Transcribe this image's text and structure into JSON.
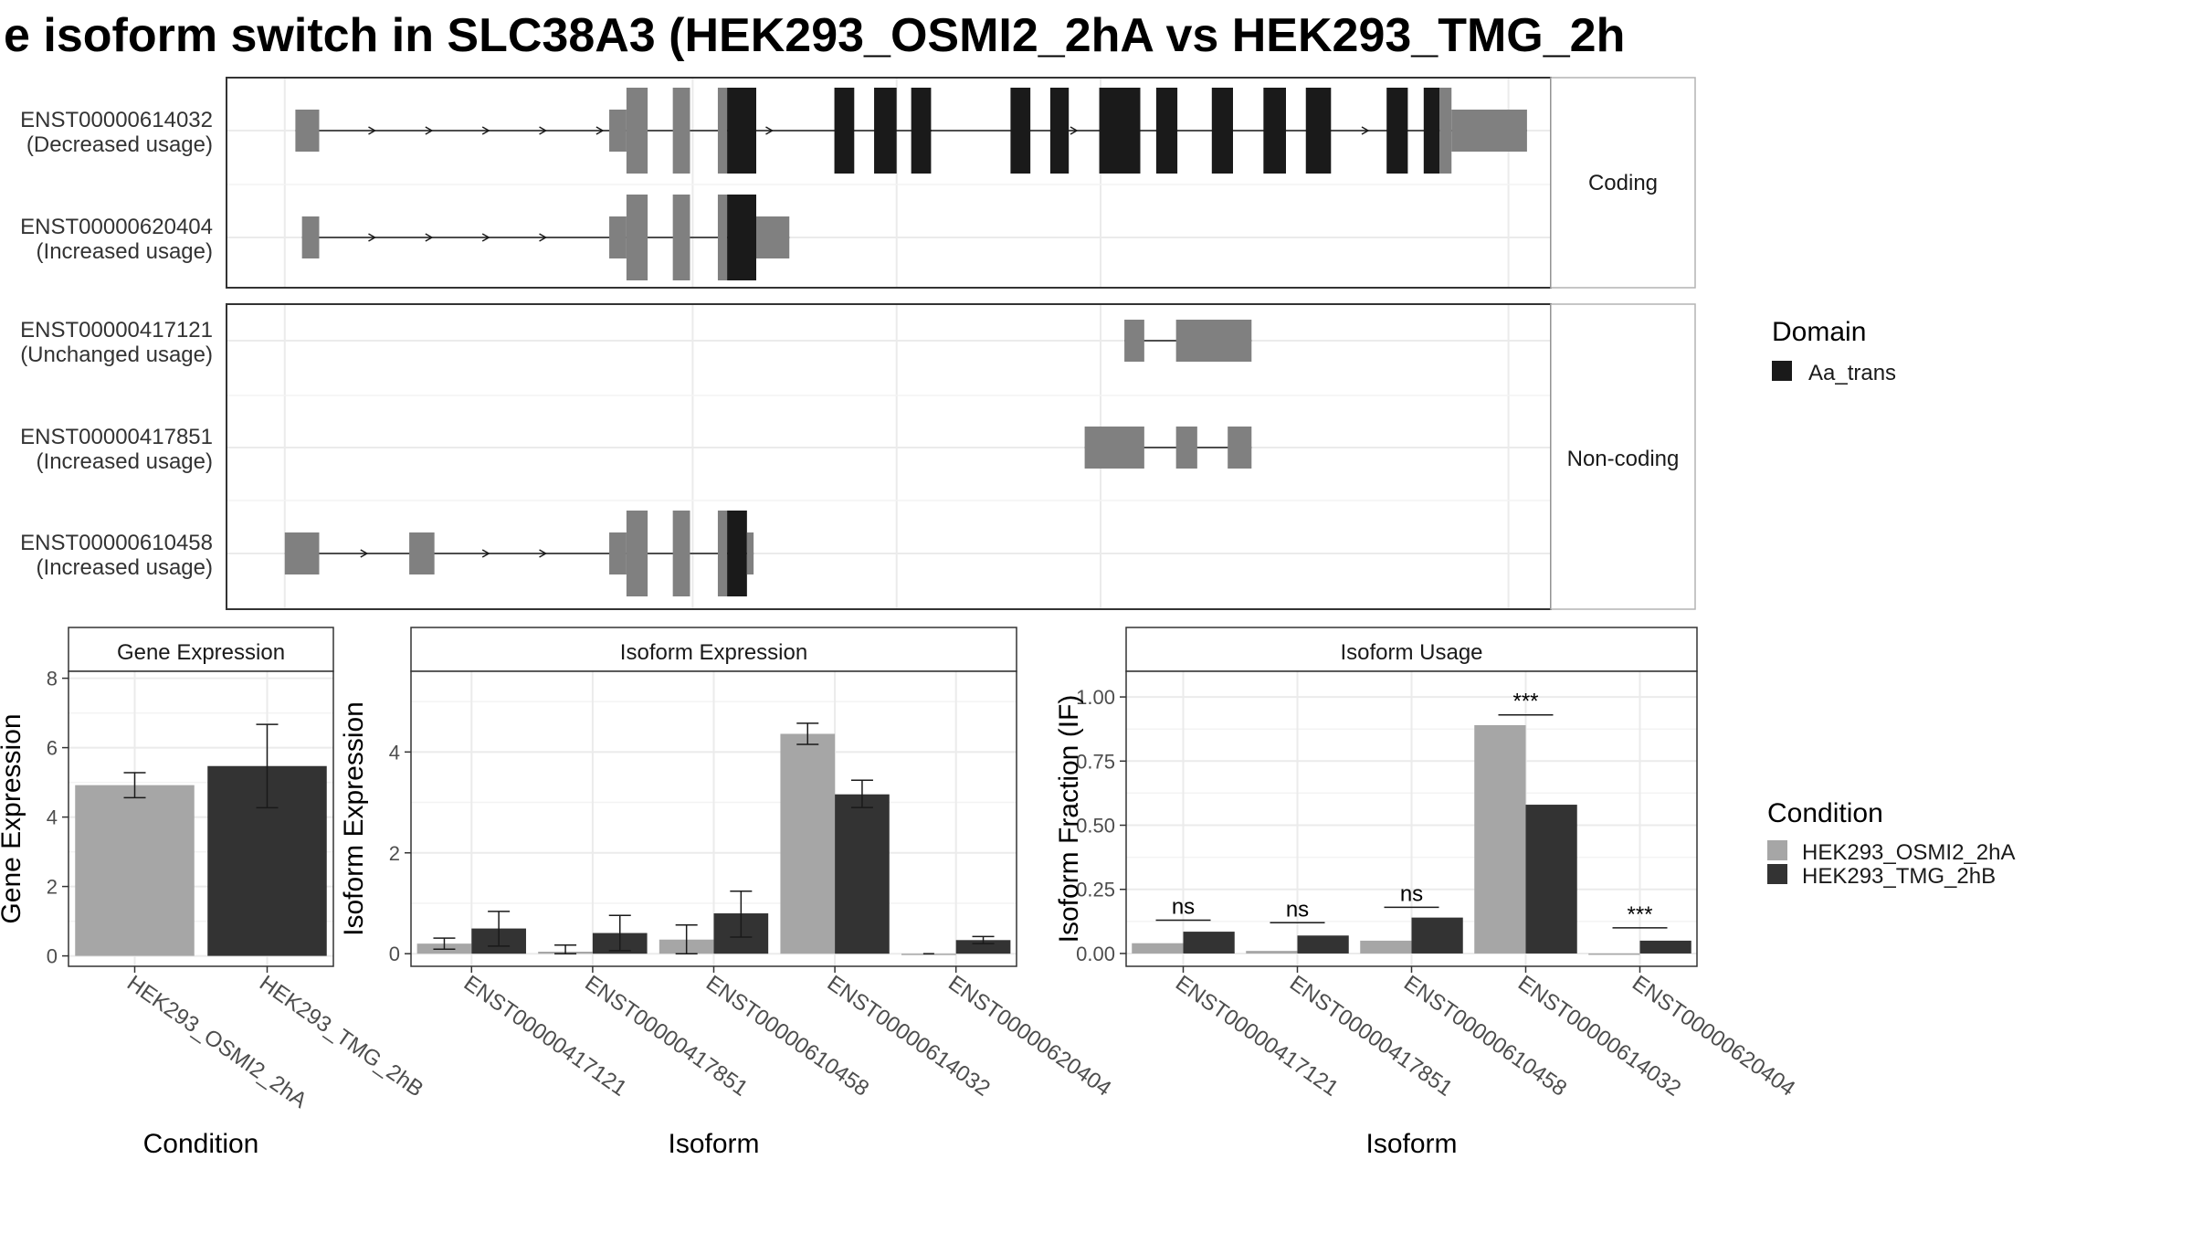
{
  "title": "e isoform switch in SLC38A3 (HEK293_OSMI2_2hA vs HEK293_TMG_2h",
  "colors": {
    "utr": "#808080",
    "domain": "#1a1a1a",
    "cond1": "#a6a6a6",
    "cond2": "#333333",
    "grid": "#ebebeb",
    "strip_bg": "#ffffff",
    "border": "#333333",
    "text": "#333333"
  },
  "transcripts": {
    "coding_label": "Coding",
    "noncoding_label": "Non-coding",
    "items": [
      {
        "id": "ENST00000614032",
        "usage": "(Decreased usage)",
        "group": "coding",
        "exons": [
          {
            "s": 0.052,
            "e": 0.07,
            "t": "utr"
          },
          {
            "s": 0.289,
            "e": 0.302,
            "t": "utr"
          },
          {
            "s": 0.302,
            "e": 0.318,
            "t": "domain-utr"
          },
          {
            "s": 0.337,
            "e": 0.35,
            "t": "utr"
          },
          {
            "s": 0.371,
            "e": 0.378,
            "t": "utr"
          },
          {
            "s": 0.378,
            "e": 0.4,
            "t": "domain"
          },
          {
            "s": 0.459,
            "e": 0.474,
            "t": "domain"
          },
          {
            "s": 0.489,
            "e": 0.506,
            "t": "domain"
          },
          {
            "s": 0.517,
            "e": 0.532,
            "t": "domain"
          },
          {
            "s": 0.592,
            "e": 0.607,
            "t": "domain"
          },
          {
            "s": 0.622,
            "e": 0.636,
            "t": "domain"
          },
          {
            "s": 0.659,
            "e": 0.69,
            "t": "domain"
          },
          {
            "s": 0.702,
            "e": 0.718,
            "t": "domain"
          },
          {
            "s": 0.744,
            "e": 0.76,
            "t": "domain"
          },
          {
            "s": 0.783,
            "e": 0.8,
            "t": "domain"
          },
          {
            "s": 0.815,
            "e": 0.834,
            "t": "domain"
          },
          {
            "s": 0.876,
            "e": 0.892,
            "t": "domain"
          },
          {
            "s": 0.904,
            "e": 0.916,
            "t": "domain"
          },
          {
            "s": 0.916,
            "e": 0.925,
            "t": "utr"
          },
          {
            "s": 0.925,
            "e": 0.982,
            "t": "utr"
          }
        ],
        "arrows": [
          0.11,
          0.153,
          0.196,
          0.239,
          0.282,
          0.41,
          0.53,
          0.64,
          0.86
        ]
      },
      {
        "id": "ENST00000620404",
        "usage": "(Increased usage)",
        "group": "coding",
        "exons": [
          {
            "s": 0.057,
            "e": 0.07,
            "t": "utr"
          },
          {
            "s": 0.289,
            "e": 0.302,
            "t": "utr"
          },
          {
            "s": 0.302,
            "e": 0.318,
            "t": "utr"
          },
          {
            "s": 0.337,
            "e": 0.35,
            "t": "utr"
          },
          {
            "s": 0.371,
            "e": 0.378,
            "t": "utr"
          },
          {
            "s": 0.378,
            "e": 0.4,
            "t": "domain"
          },
          {
            "s": 0.4,
            "e": 0.425,
            "t": "utr"
          }
        ],
        "arrows": [
          0.11,
          0.153,
          0.196,
          0.239
        ]
      },
      {
        "id": "ENST00000417121",
        "usage": "(Unchanged usage)",
        "group": "noncoding",
        "exons": [
          {
            "s": 0.678,
            "e": 0.693,
            "t": "utr"
          },
          {
            "s": 0.717,
            "e": 0.774,
            "t": "utr"
          }
        ],
        "arrows": []
      },
      {
        "id": "ENST00000417851",
        "usage": "(Increased usage)",
        "group": "noncoding",
        "exons": [
          {
            "s": 0.648,
            "e": 0.693,
            "t": "utr"
          },
          {
            "s": 0.717,
            "e": 0.733,
            "t": "utr"
          },
          {
            "s": 0.756,
            "e": 0.774,
            "t": "utr"
          }
        ],
        "arrows": []
      },
      {
        "id": "ENST00000610458",
        "usage": "(Increased usage)",
        "group": "noncoding",
        "exons": [
          {
            "s": 0.044,
            "e": 0.07,
            "t": "utr"
          },
          {
            "s": 0.138,
            "e": 0.157,
            "t": "utr"
          },
          {
            "s": 0.289,
            "e": 0.302,
            "t": "utr"
          },
          {
            "s": 0.302,
            "e": 0.318,
            "t": "utr"
          },
          {
            "s": 0.337,
            "e": 0.35,
            "t": "utr"
          },
          {
            "s": 0.371,
            "e": 0.378,
            "t": "utr"
          },
          {
            "s": 0.378,
            "e": 0.393,
            "t": "domain"
          },
          {
            "s": 0.393,
            "e": 0.398,
            "t": "utr"
          }
        ],
        "arrows": [
          0.104,
          0.196,
          0.239
        ]
      }
    ],
    "grid_v": [
      0.044,
      0.352,
      0.506,
      0.66,
      0.968
    ],
    "legend_title": "Domain",
    "legend_item": "Aa_trans"
  },
  "chart_data": [
    {
      "type": "bar",
      "title": "Gene Expression",
      "xlabel": "Condition",
      "ylabel": "Gene Expression",
      "categories": [
        "HEK293_OSMI2_2hA",
        "HEK293_TMG_2hB"
      ],
      "values": [
        4.92,
        5.47
      ],
      "errors": [
        [
          4.56,
          5.28
        ],
        [
          4.27,
          6.67
        ]
      ],
      "ylim": [
        -0.3,
        8.2
      ],
      "yticks": [
        "0",
        "2",
        "4",
        "6",
        "8"
      ]
    },
    {
      "type": "bar",
      "title": "Isoform Expression",
      "xlabel": "Isoform",
      "ylabel": "Isoform Expression",
      "categories": [
        "ENST00000417121",
        "ENST00000417851",
        "ENST00000610458",
        "ENST00000614032",
        "ENST00000620404"
      ],
      "series": [
        {
          "name": "HEK293_OSMI2_2hA",
          "values": [
            0.2,
            0.04,
            0.28,
            4.36,
            0.0
          ],
          "errors": [
            [
              0.09,
              0.31
            ],
            [
              0.0,
              0.17
            ],
            [
              0.0,
              0.57
            ],
            [
              4.15,
              4.57
            ],
            [
              0.0,
              0.0
            ]
          ]
        },
        {
          "name": "HEK293_TMG_2hB",
          "values": [
            0.5,
            0.41,
            0.8,
            3.16,
            0.27
          ],
          "errors": [
            [
              0.15,
              0.84
            ],
            [
              0.06,
              0.76
            ],
            [
              0.33,
              1.24
            ],
            [
              2.9,
              3.44
            ],
            [
              0.2,
              0.34
            ]
          ]
        }
      ],
      "ylim": [
        -0.25,
        5.6
      ],
      "yticks": [
        "0",
        "2",
        "4"
      ]
    },
    {
      "type": "bar",
      "title": "Isoform Usage",
      "xlabel": "Isoform",
      "ylabel": "Isoform Fraction (IF)",
      "categories": [
        "ENST00000417121",
        "ENST00000417851",
        "ENST00000610458",
        "ENST00000614032",
        "ENST00000620404"
      ],
      "series": [
        {
          "name": "HEK293_OSMI2_2hA",
          "values": [
            0.04,
            0.01,
            0.05,
            0.89,
            0.0
          ]
        },
        {
          "name": "HEK293_TMG_2hB",
          "values": [
            0.085,
            0.07,
            0.14,
            0.58,
            0.05
          ]
        }
      ],
      "significance": [
        "ns",
        "ns",
        "ns",
        "***",
        "***"
      ],
      "sig_heights": [
        0.13,
        0.12,
        0.18,
        0.93,
        0.1
      ],
      "ylim": [
        -0.05,
        1.1
      ],
      "yticks": [
        "0.00",
        "0.25",
        "0.50",
        "0.75",
        "1.00"
      ]
    }
  ],
  "condition_legend": {
    "title": "Condition",
    "items": [
      "HEK293_OSMI2_2hA",
      "HEK293_TMG_2hB"
    ]
  }
}
